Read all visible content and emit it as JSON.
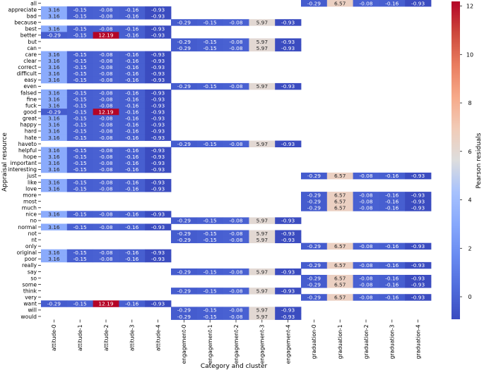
{
  "chart_data": {
    "type": "heatmap",
    "xlabel": "Category and cluster",
    "ylabel": "Appraisal resource",
    "colorbar_label": "Pearson residuals",
    "color_range": [
      -0.93,
      12.19
    ],
    "colorbar_ticks": [
      "0",
      "2",
      "4",
      "6",
      "8",
      "10",
      "12"
    ],
    "colormap": "coolwarm",
    "columns": [
      "attitude-0",
      "attitude-1",
      "attitude-2",
      "attitude-3",
      "attitude-4",
      "engagement-0",
      "engagement-1",
      "engagement-2",
      "engagement-3",
      "engagement-4",
      "graduation-0",
      "graduation-1",
      "graduation-2",
      "graduation-3",
      "graduation-4"
    ],
    "rows": [
      "all",
      "appreciate",
      "bad",
      "because",
      "best",
      "better",
      "but",
      "can",
      "care",
      "clear",
      "correct",
      "difficult",
      "easy",
      "even",
      "falsed",
      "fine",
      "fuck",
      "good",
      "great",
      "happy",
      "hard",
      "hate",
      "haveto",
      "helpful",
      "hope",
      "important",
      "interesting",
      "just",
      "like",
      "love",
      "more",
      "most",
      "much",
      "nice",
      "no",
      "normal",
      "not",
      "nt",
      "only",
      "original",
      "poor",
      "really",
      "say",
      "so",
      "some",
      "think",
      "very",
      "want",
      "will",
      "would"
    ],
    "values": [
      [
        null,
        null,
        null,
        null,
        null,
        null,
        null,
        null,
        null,
        null,
        -0.29,
        6.57,
        -0.08,
        -0.16,
        -0.93
      ],
      [
        3.16,
        -0.15,
        -0.08,
        -0.16,
        -0.93,
        null,
        null,
        null,
        null,
        null,
        null,
        null,
        null,
        null,
        null
      ],
      [
        3.16,
        -0.15,
        -0.08,
        -0.16,
        -0.93,
        null,
        null,
        null,
        null,
        null,
        null,
        null,
        null,
        null,
        null
      ],
      [
        null,
        null,
        null,
        null,
        null,
        -0.29,
        -0.15,
        -0.08,
        5.97,
        -0.93,
        null,
        null,
        null,
        null,
        null
      ],
      [
        3.16,
        -0.15,
        -0.08,
        -0.16,
        -0.93,
        null,
        null,
        null,
        null,
        null,
        null,
        null,
        null,
        null,
        null
      ],
      [
        -0.29,
        -0.15,
        12.19,
        -0.16,
        -0.93,
        null,
        null,
        null,
        null,
        null,
        null,
        null,
        null,
        null,
        null
      ],
      [
        null,
        null,
        null,
        null,
        null,
        -0.29,
        -0.15,
        -0.08,
        5.97,
        -0.93,
        null,
        null,
        null,
        null,
        null
      ],
      [
        null,
        null,
        null,
        null,
        null,
        -0.29,
        -0.15,
        -0.08,
        5.97,
        -0.93,
        null,
        null,
        null,
        null,
        null
      ],
      [
        3.16,
        -0.15,
        -0.08,
        -0.16,
        -0.93,
        null,
        null,
        null,
        null,
        null,
        null,
        null,
        null,
        null,
        null
      ],
      [
        3.16,
        -0.15,
        -0.08,
        -0.16,
        -0.93,
        null,
        null,
        null,
        null,
        null,
        null,
        null,
        null,
        null,
        null
      ],
      [
        3.16,
        -0.15,
        -0.08,
        -0.16,
        -0.93,
        null,
        null,
        null,
        null,
        null,
        null,
        null,
        null,
        null,
        null
      ],
      [
        3.16,
        -0.15,
        -0.08,
        -0.16,
        -0.93,
        null,
        null,
        null,
        null,
        null,
        null,
        null,
        null,
        null,
        null
      ],
      [
        3.16,
        -0.15,
        -0.08,
        -0.16,
        -0.93,
        null,
        null,
        null,
        null,
        null,
        null,
        null,
        null,
        null,
        null
      ],
      [
        null,
        null,
        null,
        null,
        null,
        -0.29,
        -0.15,
        -0.08,
        5.97,
        -0.93,
        null,
        null,
        null,
        null,
        null
      ],
      [
        3.16,
        -0.15,
        -0.08,
        -0.16,
        -0.93,
        null,
        null,
        null,
        null,
        null,
        null,
        null,
        null,
        null,
        null
      ],
      [
        3.16,
        -0.15,
        -0.08,
        -0.16,
        -0.93,
        null,
        null,
        null,
        null,
        null,
        null,
        null,
        null,
        null,
        null
      ],
      [
        3.16,
        -0.15,
        -0.08,
        -0.16,
        -0.93,
        null,
        null,
        null,
        null,
        null,
        null,
        null,
        null,
        null,
        null
      ],
      [
        -0.29,
        -0.15,
        12.19,
        -0.16,
        -0.93,
        null,
        null,
        null,
        null,
        null,
        null,
        null,
        null,
        null,
        null
      ],
      [
        3.16,
        -0.15,
        -0.08,
        -0.16,
        -0.93,
        null,
        null,
        null,
        null,
        null,
        null,
        null,
        null,
        null,
        null
      ],
      [
        3.16,
        -0.15,
        -0.08,
        -0.16,
        -0.93,
        null,
        null,
        null,
        null,
        null,
        null,
        null,
        null,
        null,
        null
      ],
      [
        3.16,
        -0.15,
        -0.08,
        -0.16,
        -0.93,
        null,
        null,
        null,
        null,
        null,
        null,
        null,
        null,
        null,
        null
      ],
      [
        3.16,
        -0.15,
        -0.08,
        -0.16,
        -0.93,
        null,
        null,
        null,
        null,
        null,
        null,
        null,
        null,
        null,
        null
      ],
      [
        null,
        null,
        null,
        null,
        null,
        -0.29,
        -0.15,
        -0.08,
        5.97,
        -0.93,
        null,
        null,
        null,
        null,
        null
      ],
      [
        3.16,
        -0.15,
        -0.08,
        -0.16,
        -0.93,
        null,
        null,
        null,
        null,
        null,
        null,
        null,
        null,
        null,
        null
      ],
      [
        3.16,
        -0.15,
        -0.08,
        -0.16,
        -0.93,
        null,
        null,
        null,
        null,
        null,
        null,
        null,
        null,
        null,
        null
      ],
      [
        3.16,
        -0.15,
        -0.08,
        -0.16,
        -0.93,
        null,
        null,
        null,
        null,
        null,
        null,
        null,
        null,
        null,
        null
      ],
      [
        3.16,
        -0.15,
        -0.08,
        -0.16,
        -0.93,
        null,
        null,
        null,
        null,
        null,
        null,
        null,
        null,
        null,
        null
      ],
      [
        null,
        null,
        null,
        null,
        null,
        null,
        null,
        null,
        null,
        null,
        -0.29,
        6.57,
        -0.08,
        -0.16,
        -0.93
      ],
      [
        3.16,
        -0.15,
        -0.08,
        -0.16,
        -0.93,
        null,
        null,
        null,
        null,
        null,
        null,
        null,
        null,
        null,
        null
      ],
      [
        3.16,
        -0.15,
        -0.08,
        -0.16,
        -0.93,
        null,
        null,
        null,
        null,
        null,
        null,
        null,
        null,
        null,
        null
      ],
      [
        null,
        null,
        null,
        null,
        null,
        null,
        null,
        null,
        null,
        null,
        -0.29,
        6.57,
        -0.08,
        -0.16,
        -0.93
      ],
      [
        null,
        null,
        null,
        null,
        null,
        null,
        null,
        null,
        null,
        null,
        -0.29,
        6.57,
        -0.08,
        -0.16,
        -0.93
      ],
      [
        null,
        null,
        null,
        null,
        null,
        null,
        null,
        null,
        null,
        null,
        -0.29,
        6.57,
        -0.08,
        -0.16,
        -0.93
      ],
      [
        3.16,
        -0.15,
        -0.08,
        -0.16,
        -0.93,
        null,
        null,
        null,
        null,
        null,
        null,
        null,
        null,
        null,
        null
      ],
      [
        null,
        null,
        null,
        null,
        null,
        -0.29,
        -0.15,
        -0.08,
        5.97,
        -0.93,
        null,
        null,
        null,
        null,
        null
      ],
      [
        3.16,
        -0.15,
        -0.08,
        -0.16,
        -0.93,
        null,
        null,
        null,
        null,
        null,
        null,
        null,
        null,
        null,
        null
      ],
      [
        null,
        null,
        null,
        null,
        null,
        -0.29,
        -0.15,
        -0.08,
        5.97,
        -0.93,
        null,
        null,
        null,
        null,
        null
      ],
      [
        null,
        null,
        null,
        null,
        null,
        -0.29,
        -0.15,
        -0.08,
        5.97,
        -0.93,
        null,
        null,
        null,
        null,
        null
      ],
      [
        null,
        null,
        null,
        null,
        null,
        null,
        null,
        null,
        null,
        null,
        -0.29,
        6.57,
        -0.08,
        -0.16,
        -0.93
      ],
      [
        3.16,
        -0.15,
        -0.08,
        -0.16,
        -0.93,
        null,
        null,
        null,
        null,
        null,
        null,
        null,
        null,
        null,
        null
      ],
      [
        3.16,
        -0.15,
        -0.08,
        -0.16,
        -0.93,
        null,
        null,
        null,
        null,
        null,
        null,
        null,
        null,
        null,
        null
      ],
      [
        null,
        null,
        null,
        null,
        null,
        null,
        null,
        null,
        null,
        null,
        -0.29,
        6.57,
        -0.08,
        -0.16,
        -0.93
      ],
      [
        null,
        null,
        null,
        null,
        null,
        -0.29,
        -0.15,
        -0.08,
        5.97,
        -0.93,
        null,
        null,
        null,
        null,
        null
      ],
      [
        null,
        null,
        null,
        null,
        null,
        null,
        null,
        null,
        null,
        null,
        -0.29,
        6.57,
        -0.08,
        -0.16,
        -0.93
      ],
      [
        null,
        null,
        null,
        null,
        null,
        null,
        null,
        null,
        null,
        null,
        -0.29,
        6.57,
        -0.08,
        -0.16,
        -0.93
      ],
      [
        null,
        null,
        null,
        null,
        null,
        -0.29,
        -0.15,
        -0.08,
        5.97,
        -0.93,
        null,
        null,
        null,
        null,
        null
      ],
      [
        null,
        null,
        null,
        null,
        null,
        null,
        null,
        null,
        null,
        null,
        -0.29,
        6.57,
        -0.08,
        -0.16,
        -0.93
      ],
      [
        -0.29,
        -0.15,
        12.19,
        -0.16,
        -0.93,
        null,
        null,
        null,
        null,
        null,
        null,
        null,
        null,
        null,
        null
      ],
      [
        null,
        null,
        null,
        null,
        null,
        -0.29,
        -0.15,
        -0.08,
        5.97,
        -0.93,
        null,
        null,
        null,
        null,
        null
      ],
      [
        null,
        null,
        null,
        null,
        null,
        -0.29,
        -0.15,
        -0.08,
        5.97,
        -0.93,
        null,
        null,
        null,
        null,
        null
      ]
    ]
  }
}
